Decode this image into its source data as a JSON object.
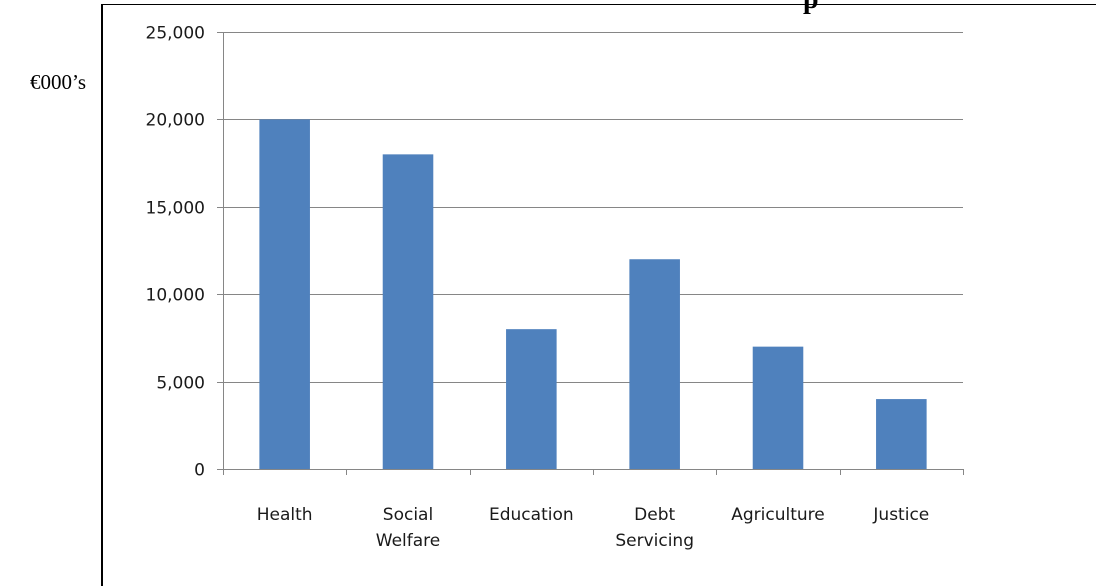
{
  "page": {
    "unit_label": "€000’s",
    "title_fragment": "p"
  },
  "chart_data": {
    "type": "bar",
    "categories": [
      [
        "Health"
      ],
      [
        "Social",
        "Welfare"
      ],
      [
        "Education"
      ],
      [
        "Debt",
        "Servicing"
      ],
      [
        "Agriculture"
      ],
      [
        "Justice"
      ]
    ],
    "values": [
      20000,
      18000,
      8000,
      12000,
      7000,
      4000
    ],
    "title": "",
    "xlabel": "",
    "ylabel": "€000’s",
    "ylim": [
      0,
      25000
    ],
    "yticks": [
      0,
      5000,
      10000,
      15000,
      20000,
      25000
    ],
    "ytick_labels": [
      "0",
      "5,000",
      "10,000",
      "15,000",
      "20,000",
      "25,000"
    ],
    "grid": true,
    "legend": "none",
    "colors": {
      "bar": "#4f81bd",
      "grid": "#868686",
      "axis": "#868686"
    }
  }
}
